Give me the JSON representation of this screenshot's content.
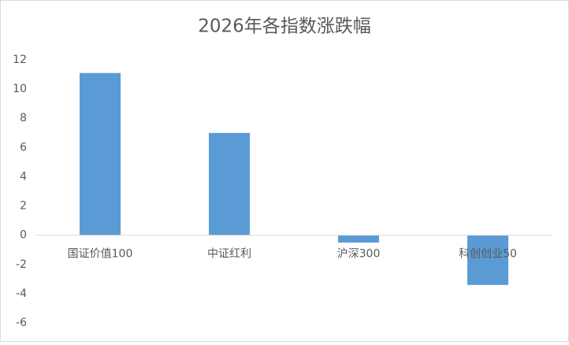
{
  "chart_data": {
    "type": "bar",
    "title": "2026年各指数涨跌幅",
    "categories": [
      "国证价值100",
      "中证红利",
      "沪深300",
      "科创创业50"
    ],
    "values": [
      11.1,
      7.0,
      -0.5,
      -3.4
    ],
    "color": "#5b9bd5",
    "ylim": [
      -6,
      12
    ],
    "yticks": [
      -6,
      -4,
      -2,
      0,
      2,
      4,
      6,
      8,
      10,
      12
    ],
    "grid": false
  }
}
